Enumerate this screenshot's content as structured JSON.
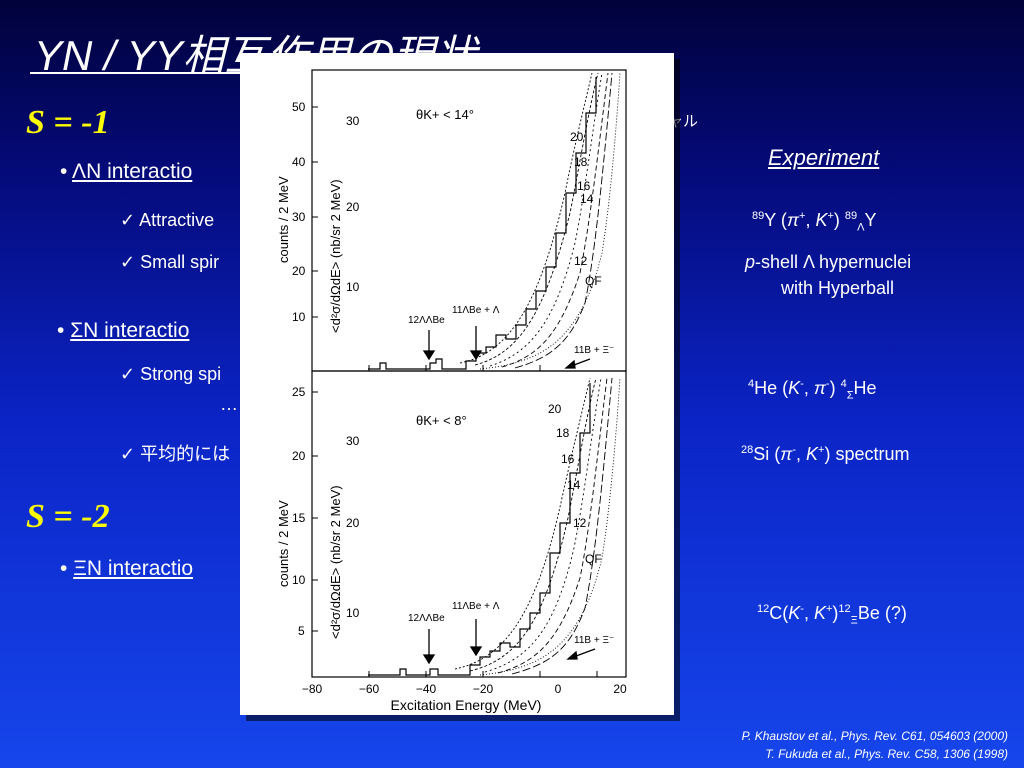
{
  "slide": {
    "title": "YN / YY相互作用の現状",
    "right_fragment": "ャル",
    "experiment_header": "Experiment",
    "sections": [
      {
        "label": "S = -1",
        "bullets": [
          {
            "prefix": "•",
            "text": "ΛN  interactio",
            "checks": [
              "✓ Attractive",
              "✓ Small spir"
            ]
          },
          {
            "prefix": "•",
            "text": "ΣN  interactio",
            "checks": [
              "✓ Strong spi",
              "…",
              "✓ 平均的には"
            ]
          }
        ]
      },
      {
        "label": "S = -2",
        "bullets": [
          {
            "prefix": "•",
            "text": "ΞN  interactio",
            "checks": []
          }
        ]
      }
    ],
    "experiments": [
      "89Y (π+, K+) 89ΛY",
      "p-shell Λ hypernuclei",
      "with Hyperball",
      "4He (K-, π-) 4ΣHe",
      "28Si (π-, K+) spectrum",
      "12C(K-, K+)12ΞBe (?)"
    ],
    "references": [
      "P. Khaustov et al., Phys. Rev. C61, 054603 (2000)",
      "T. Fukuda et al., Phys. Rev. C58, 1306 (1998)"
    ]
  },
  "figure": {
    "panels": [
      {
        "angle_label": "θK+ < 14°",
        "curve_labels": [
          "20",
          "18",
          "16",
          "14",
          "12"
        ],
        "qf": "QF",
        "ticks_left": [
          "50",
          "40",
          "30",
          "20",
          "10"
        ],
        "ticks_right": [
          "30",
          "20",
          "10"
        ]
      },
      {
        "angle_label": "θK+ < 8°",
        "curve_labels": [
          "20",
          "18",
          "16",
          "14",
          "12"
        ],
        "qf": "QF",
        "ticks_left": [
          "25",
          "20",
          "15",
          "10",
          "5"
        ],
        "ticks_right": [
          "30",
          "20",
          "10"
        ]
      }
    ],
    "ylabel_left": "counts / 2 MeV",
    "ylabel_right": "<d²σ/dΩdE> (nb/sr 2 MeV)",
    "xlabel": "Excitation Energy   (MeV)",
    "xticks": [
      "−80",
      "−60",
      "−40",
      "−20",
      "0",
      "20"
    ],
    "arrow_labels": [
      "12ΛΛBe",
      "11ΛBe + Λ",
      "11B + Ξ⁻"
    ]
  }
}
